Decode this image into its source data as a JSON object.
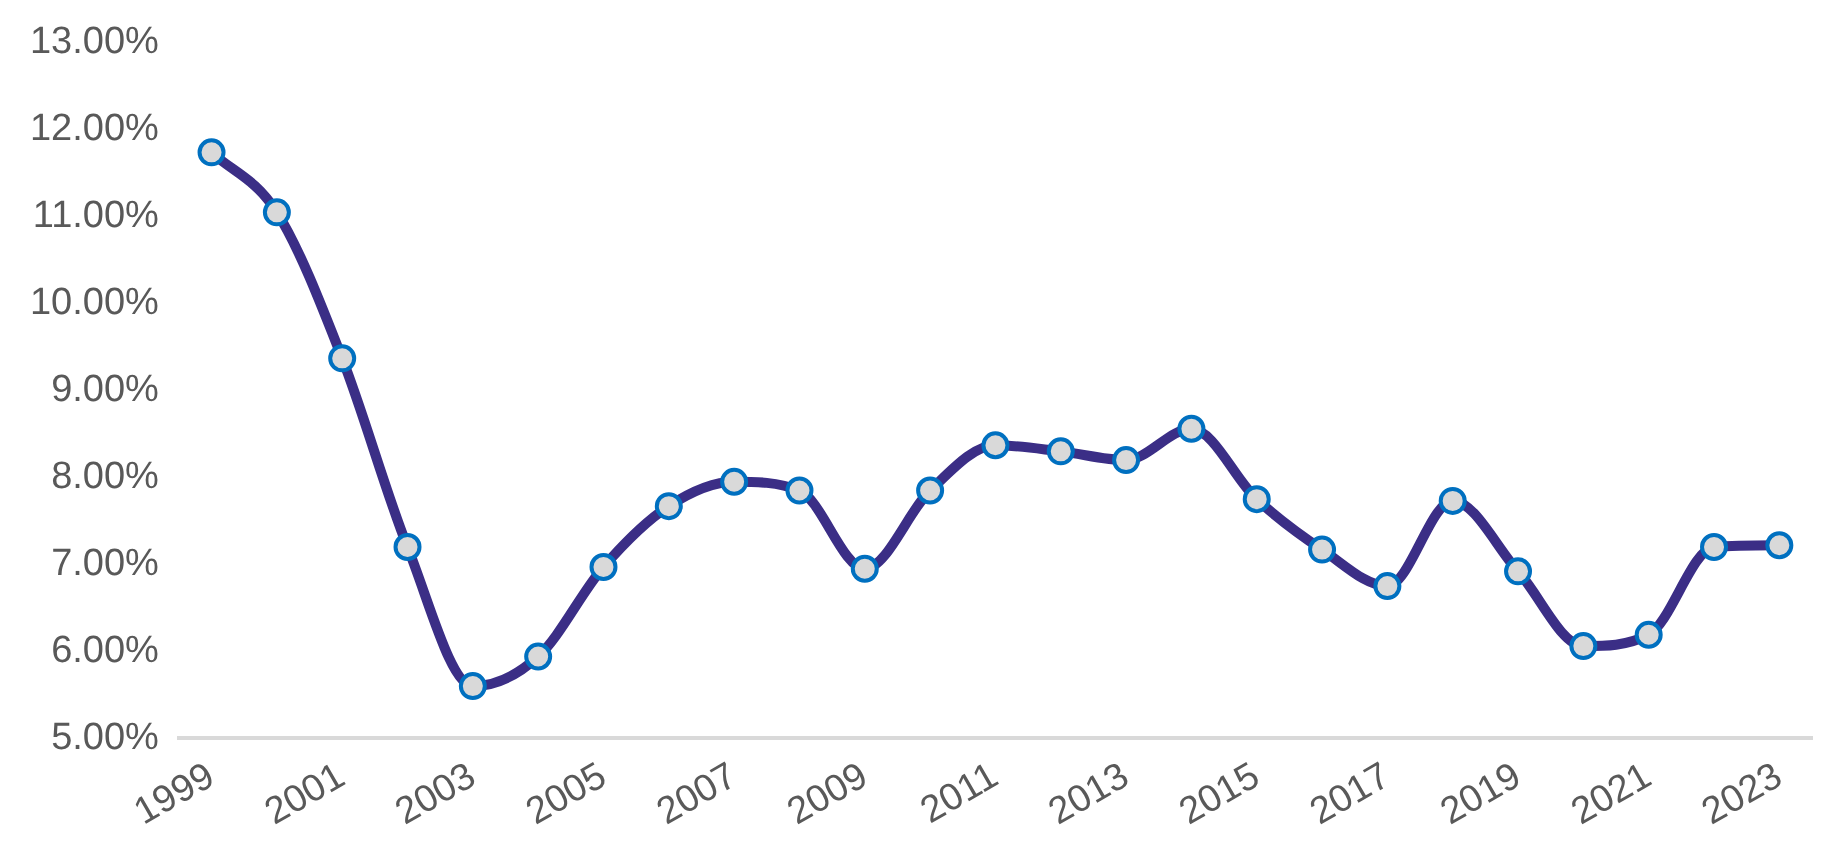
{
  "chart_data": {
    "type": "line",
    "categories": [
      "1999",
      null,
      "2001",
      null,
      "2003",
      null,
      "2005",
      null,
      "2007",
      null,
      "2009",
      null,
      "2011",
      null,
      "2013",
      null,
      "2015",
      null,
      "2017",
      null,
      "2019",
      null,
      "2021",
      null,
      "2023"
    ],
    "series": [
      {
        "color": "#3b2e86",
        "values": [
          11.74,
          11.05,
          9.37,
          7.2,
          5.6,
          5.94,
          6.97,
          7.67,
          7.95,
          7.85,
          6.95,
          7.85,
          8.37,
          8.3,
          8.2,
          8.56,
          7.75,
          7.17,
          6.75,
          7.73,
          6.92,
          6.06,
          6.19,
          7.2,
          7.22
        ]
      }
    ],
    "ylim": [
      5,
      13
    ],
    "yticks": [
      {
        "value": 5,
        "label": "5.00%"
      },
      {
        "value": 6,
        "label": "6.00%"
      },
      {
        "value": 7,
        "label": "7.00%"
      },
      {
        "value": 8,
        "label": "8.00%"
      },
      {
        "value": 9,
        "label": "9.00%"
      },
      {
        "value": 10,
        "label": "10.00%"
      },
      {
        "value": 11,
        "label": "11.00%"
      },
      {
        "value": 12,
        "label": "12.00%"
      },
      {
        "value": 13,
        "label": "13.00%"
      }
    ],
    "grid": false,
    "legend": false,
    "marker": "circle",
    "line_style": "solid"
  }
}
